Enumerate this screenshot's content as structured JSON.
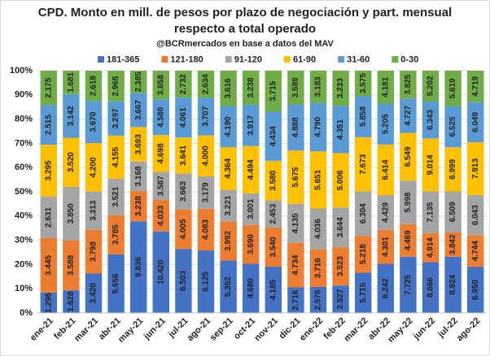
{
  "chart_data": {
    "type": "bar",
    "stacked": "percent",
    "title": [
      "CPD. Monto en mill. de pesos por plazo de negociación y part. mensual",
      "respecto a total operado"
    ],
    "subtitle": "@BCRmercados en base a datos del MAV",
    "categories": [
      "ene-21",
      "feb-21",
      "mar-21",
      "abr-21",
      "may-21",
      "jun-21",
      "jul-21",
      "ago-21",
      "sep-21",
      "oct-21",
      "nov-21",
      "dic-21",
      "ene-22",
      "feb-22",
      "mar-22",
      "abr-22",
      "may-22",
      "jun-22",
      "jul-22",
      "ago-22"
    ],
    "series": [
      {
        "name": "181-365",
        "color": "#4472c4",
        "values": [
          1296,
          1628,
          3420,
          5656,
          9836,
          10420,
          6503,
          6125,
          5352,
          4680,
          4185,
          2716,
          2576,
          2527,
          5715,
          6242,
          7725,
          8666,
          8924,
          6950
        ],
        "value_labels": [
          "1.296",
          "1.628",
          "3.420",
          "5.656",
          "9.836",
          "10.420",
          "6.503",
          "6.125",
          "5.352",
          "4.680",
          "4.185",
          "2.716",
          "2.576",
          "2.527",
          "5.715",
          "6.242",
          "7.725",
          "8.666",
          "8.924",
          "6.950"
        ]
      },
      {
        "name": "121-180",
        "color": "#ed7d31",
        "values": [
          3445,
          3588,
          3798,
          3785,
          3238,
          4033,
          4005,
          4083,
          3992,
          3690,
          3540,
          4734,
          3716,
          3523,
          5218,
          4301,
          4469,
          4914,
          3842,
          4744
        ],
        "value_labels": [
          "3.445",
          "3.588",
          "3.798",
          "3.785",
          "3.238",
          "4.033",
          "4.005",
          "4.083",
          "3.992",
          "3.690",
          "3.540",
          "4.734",
          "3.716",
          "3.523",
          "5.218",
          "4.301",
          "4.469",
          "4.914",
          "3.842",
          "4.744"
        ]
      },
      {
        "name": "91-120",
        "color": "#a5a5a5",
        "values": [
          2631,
          3850,
          3313,
          3521,
          3168,
          3587,
          3663,
          3179,
          3221,
          3001,
          2453,
          4135,
          4036,
          3644,
          6304,
          4429,
          5998,
          7135,
          6509,
          6043
        ],
        "value_labels": [
          "2.631",
          "3.850",
          "3.313",
          "3.521",
          "3.168",
          "3.587",
          "3.663",
          "3.179",
          "3.221",
          "3.001",
          "2.453",
          "4.135",
          "4.036",
          "3.644",
          "6.304",
          "4.429",
          "5.998",
          "7.135",
          "6.509",
          "6.043"
        ]
      },
      {
        "name": "61-90",
        "color": "#ffc000",
        "values": [
          3295,
          3520,
          4200,
          4155,
          3693,
          4698,
          3641,
          4000,
          4364,
          4494,
          3580,
          5675,
          5651,
          5006,
          7673,
          6414,
          6549,
          9014,
          6999,
          7913
        ],
        "value_labels": [
          "3.295",
          "3.520",
          "4.200",
          "4.155",
          "3.693",
          "4.698",
          "3.641",
          "4.000",
          "4.364",
          "4.494",
          "3.580",
          "5.675",
          "5.651",
          "5.006",
          "7.673",
          "6.414",
          "6.549",
          "9.014",
          "6.999",
          "7.913"
        ]
      },
      {
        "name": "31-60",
        "color": "#5b9bd5",
        "values": [
          2515,
          3142,
          3670,
          3297,
          3667,
          4580,
          4061,
          3707,
          4190,
          3917,
          4434,
          4888,
          4790,
          4351,
          5858,
          5205,
          4727,
          6343,
          6525,
          6049
        ],
        "value_labels": [
          "2.515",
          "3.142",
          "3.670",
          "3.297",
          "3.667",
          "4.580",
          "4.061",
          "3.707",
          "4.190",
          "3.917",
          "4.434",
          "4.888",
          "4.790",
          "4.351",
          "5.858",
          "5.205",
          "4.727",
          "6.343",
          "6.525",
          "6.049"
        ]
      },
      {
        "name": "0-30",
        "color": "#70ad47",
        "values": [
          2175,
          1681,
          2618,
          2965,
          2385,
          3658,
          2732,
          2634,
          3616,
          3238,
          3715,
          3589,
          3183,
          3233,
          3575,
          4181,
          3825,
          5202,
          5619,
          4719
        ],
        "value_labels": [
          "2.175",
          "1.681",
          "2.618",
          "2.965",
          "2.385",
          "3.658",
          "2.732",
          "2.634",
          "3.616",
          "3.238",
          "3.715",
          "3.589",
          "3.183",
          "3.233",
          "3.575",
          "4.181",
          "3.825",
          "5.202",
          "5.619",
          "4.719"
        ]
      }
    ],
    "ylim": [
      0,
      100
    ],
    "yticks": [
      {
        "value": 0,
        "label": "0%"
      },
      {
        "value": 10,
        "label": "10%"
      },
      {
        "value": 20,
        "label": "20%"
      },
      {
        "value": 30,
        "label": "30%"
      },
      {
        "value": 40,
        "label": "40%"
      },
      {
        "value": 50,
        "label": "50%"
      },
      {
        "value": 60,
        "label": "60%"
      },
      {
        "value": 70,
        "label": "70%"
      },
      {
        "value": 80,
        "label": "80%"
      },
      {
        "value": 90,
        "label": "90%"
      },
      {
        "value": 100,
        "label": "100%"
      }
    ],
    "grid": true,
    "legend": "top"
  }
}
